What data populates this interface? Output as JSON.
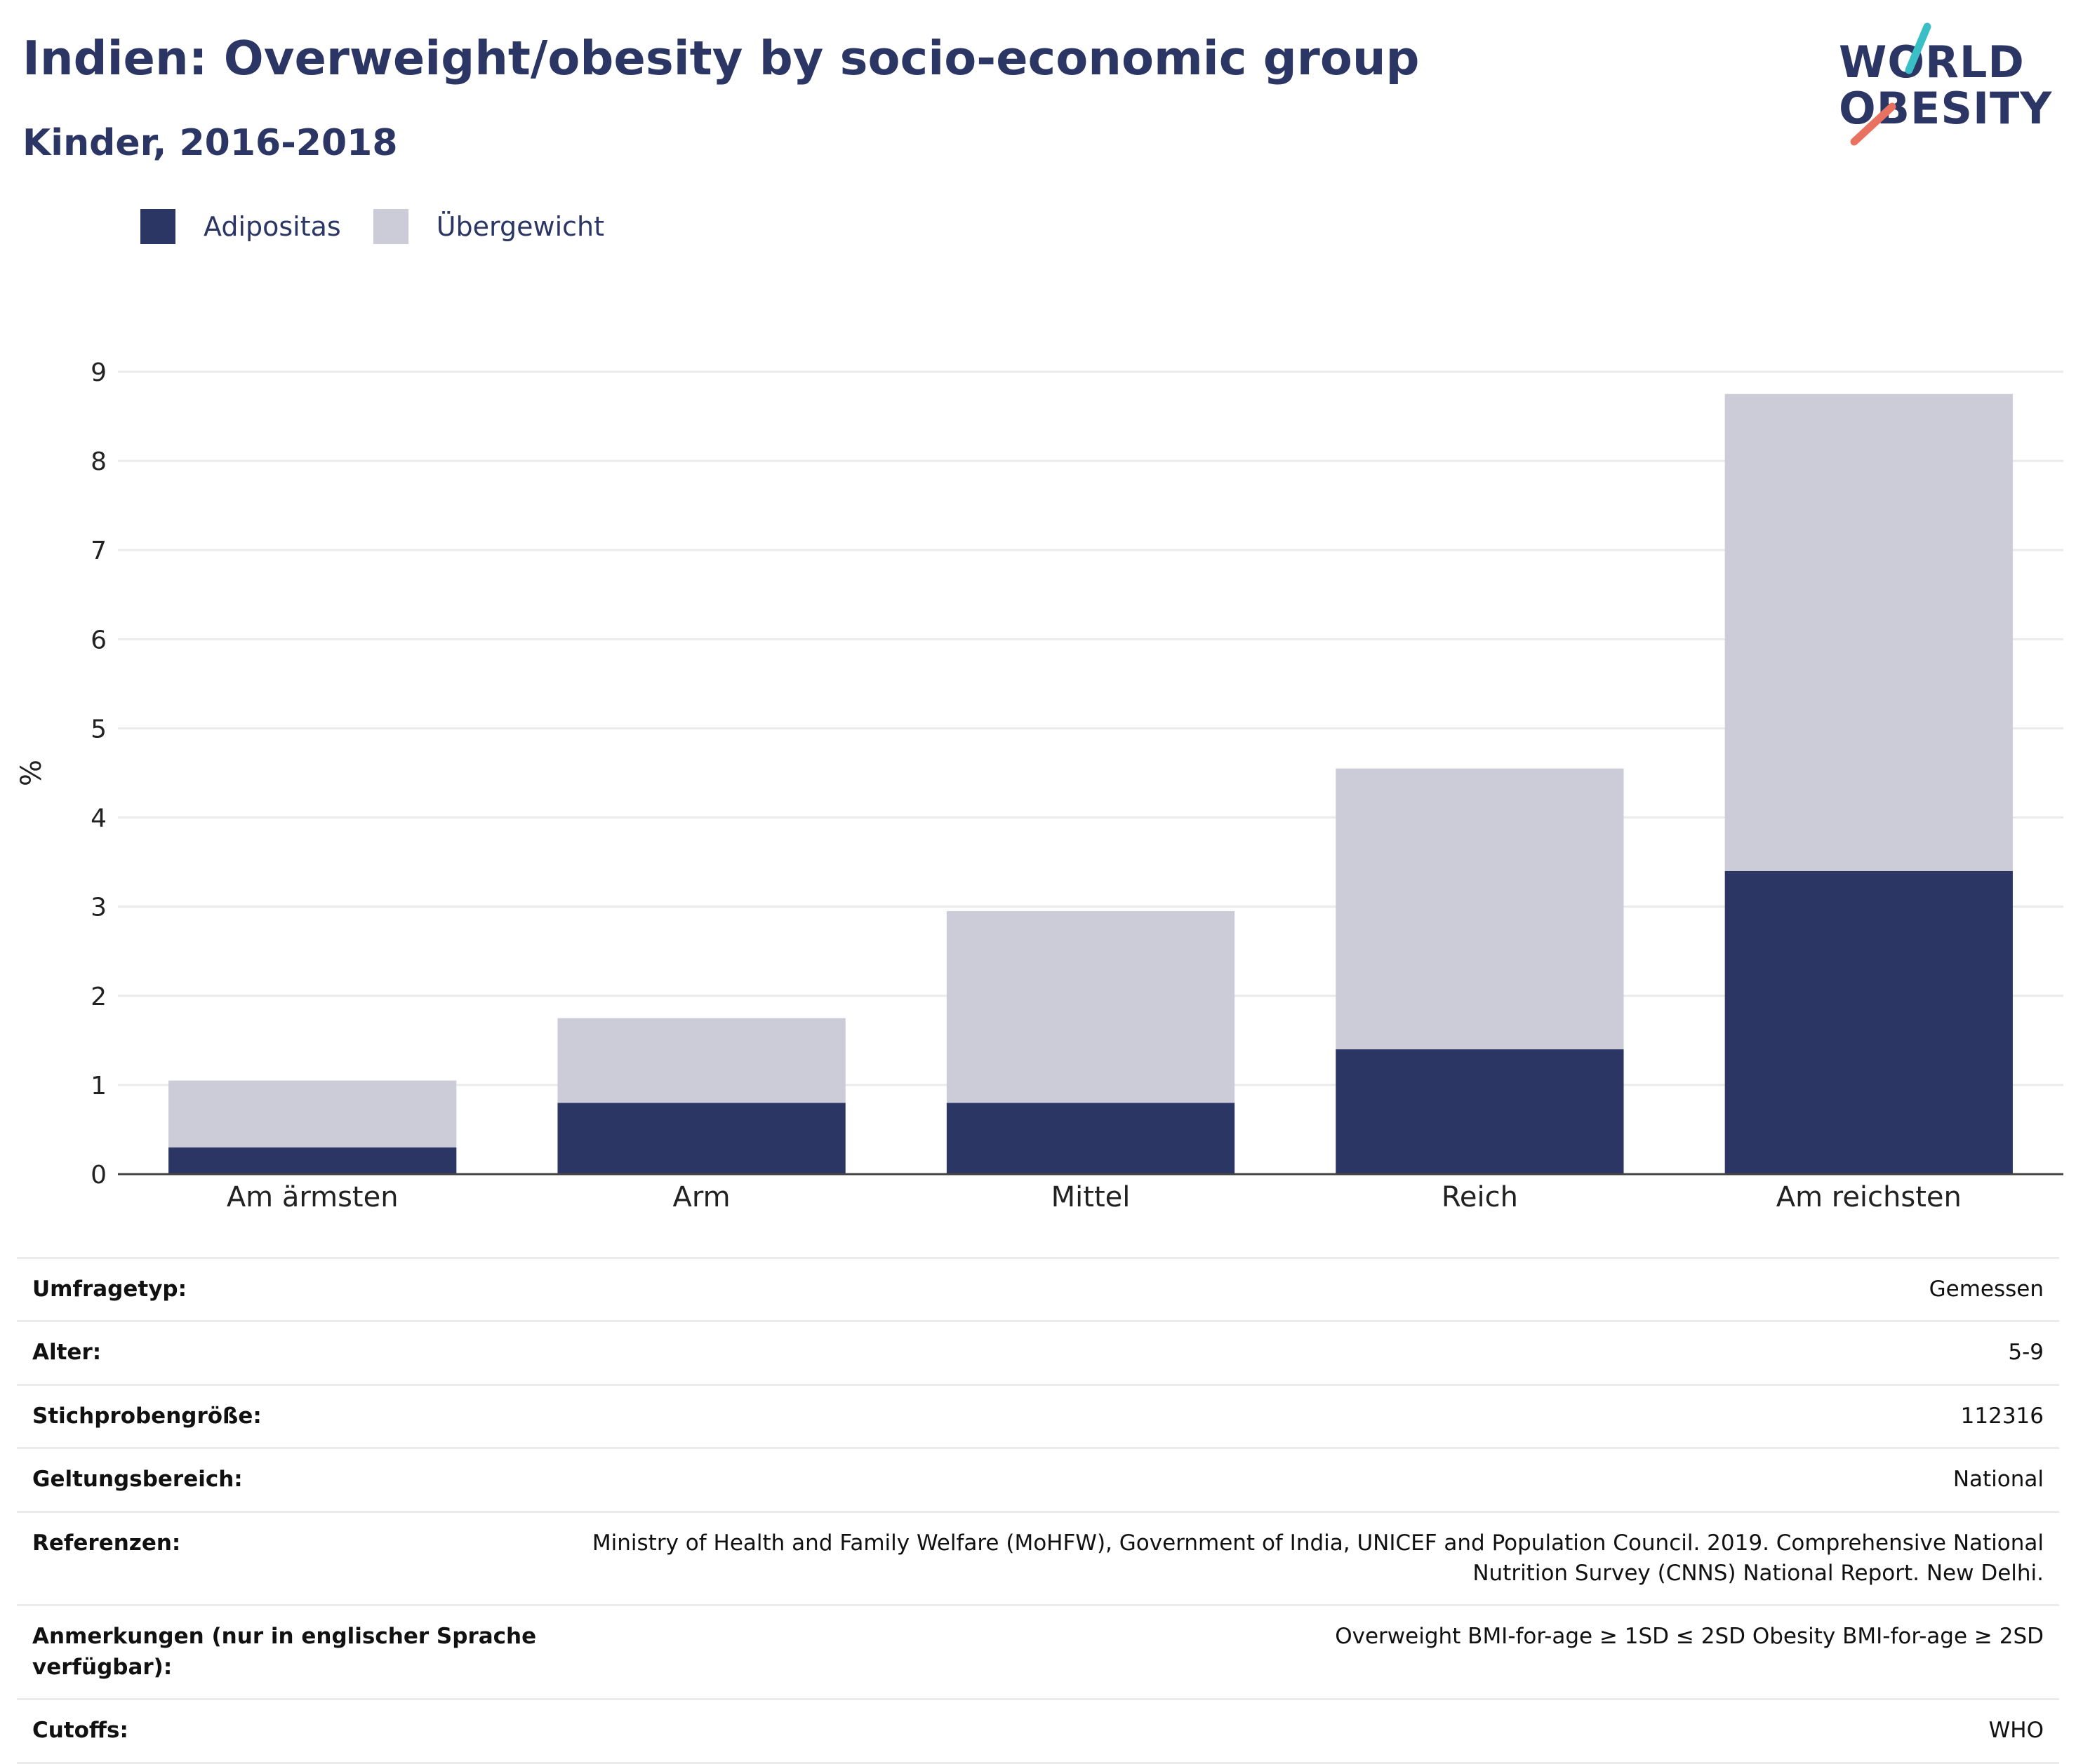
{
  "header": {
    "title": "Indien: Overweight/obesity by socio-economic group",
    "subtitle": "Kinder, 2016-2018"
  },
  "logo": {
    "line1": "WORLD",
    "line2": "OBESITY",
    "accent1": "#3bbfc6",
    "accent2": "#e8725f"
  },
  "legend": [
    {
      "label": "Adipositas",
      "color": "#2b3665"
    },
    {
      "label": "Übergewicht",
      "color": "#cbccd8"
    }
  ],
  "chart_data": {
    "type": "bar",
    "stacked": true,
    "categories": [
      "Am ärmsten",
      "Arm",
      "Mittel",
      "Reich",
      "Am reichsten"
    ],
    "series": [
      {
        "name": "Adipositas",
        "values": [
          0.3,
          0.8,
          0.8,
          1.4,
          3.4
        ],
        "color": "#2b3665"
      },
      {
        "name": "Übergewicht",
        "values": [
          0.75,
          0.95,
          2.15,
          3.15,
          5.35
        ],
        "color": "#cbccd8"
      }
    ],
    "ylabel": "%",
    "ylim": [
      0,
      9
    ],
    "yticks": [
      0,
      1,
      2,
      3,
      4,
      5,
      6,
      7,
      8,
      9
    ],
    "grid": true,
    "legend_position": "top-left"
  },
  "info": [
    {
      "key": "Umfragetyp:",
      "value": "Gemessen"
    },
    {
      "key": "Alter:",
      "value": "5-9"
    },
    {
      "key": "Stichprobengröße:",
      "value": "112316"
    },
    {
      "key": "Geltungsbereich:",
      "value": "National"
    },
    {
      "key": "Referenzen:",
      "value": "Ministry of Health and Family Welfare (MoHFW), Government of India, UNICEF and Population Council. 2019. Comprehensive National Nutrition Survey (CNNS) National Report. New Delhi."
    },
    {
      "key": "Anmerkungen (nur in englischer Sprache verfügbar):",
      "value": "Overweight BMI-for-age ≥ 1SD ≤ 2SD Obesity BMI-for-age ≥ 2SD"
    },
    {
      "key": "Cutoffs:",
      "value": "WHO"
    }
  ]
}
